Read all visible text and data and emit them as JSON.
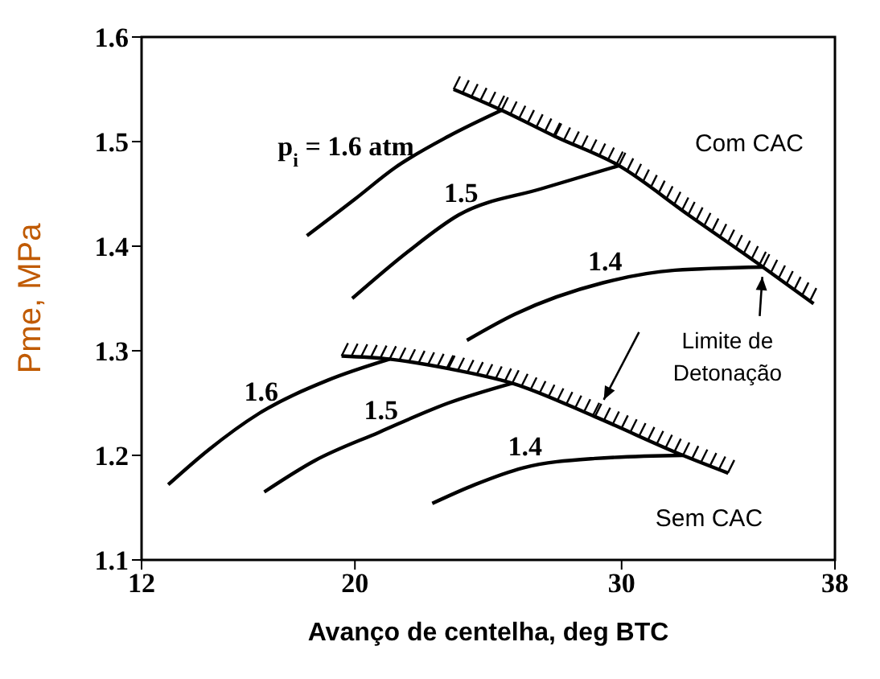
{
  "chart_data": {
    "type": "line",
    "xlabel": "Avanço de centelha, deg BTC",
    "ylabel": "Pme, MPa",
    "xlim": [
      12,
      38
    ],
    "xticks": [
      12,
      20,
      30,
      38
    ],
    "ylim": [
      1.1,
      1.6
    ],
    "yticks": [
      1.1,
      1.2,
      1.3,
      1.4,
      1.5,
      1.6
    ],
    "marker": "none",
    "line_style": "solid",
    "series": [
      {
        "color": "#000000",
        "x": [
          18.2,
          20,
          21.5,
          23.5,
          25.5
        ],
        "values": [
          1.41,
          1.445,
          1.475,
          1.505,
          1.53
        ]
      },
      {
        "color": "#000000",
        "x": [
          19.9,
          22,
          23.9,
          27,
          29.9
        ],
        "values": [
          1.35,
          1.395,
          1.43,
          1.455,
          1.477
        ]
      },
      {
        "color": "#000000",
        "x": [
          24.2,
          26,
          29.3,
          32,
          35.3
        ],
        "values": [
          1.31,
          1.335,
          1.365,
          1.377,
          1.38
        ]
      },
      {
        "color": "#000000",
        "x": [
          23.7,
          25.5,
          27.5,
          29.9,
          32.5,
          35.3,
          37.2
        ],
        "values": [
          1.55,
          1.53,
          1.505,
          1.477,
          1.43,
          1.38,
          1.345
        ]
      },
      {
        "color": "#000000",
        "x": [
          13,
          14.5,
          16.4,
          19,
          21.3
        ],
        "values": [
          1.172,
          1.205,
          1.24,
          1.272,
          1.292
        ]
      },
      {
        "color": "#000000",
        "x": [
          16.6,
          18.5,
          20.9,
          23.5,
          25.9
        ],
        "values": [
          1.165,
          1.195,
          1.222,
          1.25,
          1.269
        ]
      },
      {
        "color": "#000000",
        "x": [
          22.9,
          24.5,
          26.3,
          29,
          32.3
        ],
        "values": [
          1.154,
          1.172,
          1.188,
          1.197,
          1.2
        ]
      },
      {
        "color": "#000000",
        "x": [
          19.5,
          21.3,
          23.5,
          25.9,
          29,
          32.3,
          34
        ],
        "values": [
          1.295,
          1.292,
          1.283,
          1.269,
          1.237,
          1.2,
          1.183
        ]
      }
    ],
    "annotations": [
      "Com CAC",
      "Limite de Detonação",
      "Sem CAC",
      {
        "text": "p$_{i}$ = 1.6 atm",
        "x": 21.5,
        "y": 1.475
      },
      {
        "text": "1.5",
        "x": 23.9,
        "y": 1.43
      },
      {
        "text": "1.4",
        "x": 29.3,
        "y": 1.365
      },
      {
        "text": "1.6",
        "x": 16.4,
        "y": 1.24
      },
      {
        "text": "1.5",
        "x": 20.9,
        "y": 1.222
      },
      {
        "text": "1.4",
        "x": 26.3,
        "y": 1.188
      }
    ]
  }
}
